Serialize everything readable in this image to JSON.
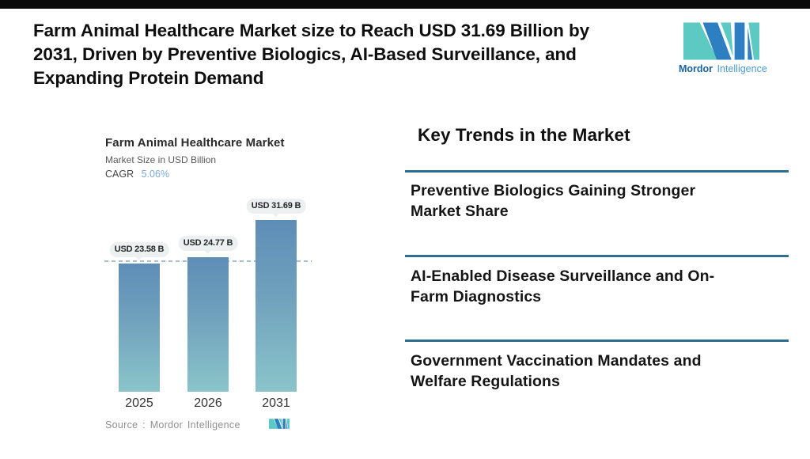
{
  "colors": {
    "teal": "#5CC9C2",
    "blue": "#2E7FC2",
    "divider": "#2E6E93",
    "bar_top": "#5E8DB6",
    "bar_bottom": "#8AC4CA",
    "dashed": "#A9BFD3",
    "cagr_value": "#7BA9DA",
    "pill_bg": "#EDF0F1"
  },
  "header": {
    "title_lines": [
      "Farm Animal Healthcare Market size to Reach USD 31.69 Billion by",
      "2031, Driven by Preventive Biologics, AI-Based Surveillance, and",
      "Expanding Protein Demand"
    ]
  },
  "logo": {
    "brand_bold": "Mordor",
    "brand_light": "Intelligence"
  },
  "chart_data": {
    "type": "bar",
    "title": "Farm Animal Healthcare Market",
    "subtitle": "Market Size in USD Billion",
    "cagr_label": "CAGR",
    "cagr_value": "5.06%",
    "categories": [
      "2025",
      "2026",
      "2031"
    ],
    "values": [
      23.58,
      24.77,
      31.69
    ],
    "value_labels": [
      "USD 23.58 B",
      "USD 24.77 B",
      "USD 31.69 B"
    ],
    "unit": "USD Billion",
    "ylim": [
      0,
      35
    ],
    "grid": "off",
    "legend": "none",
    "reference_line": {
      "style": "dashed",
      "at": 23.58
    },
    "source": "Source :  Mordor Intelligence"
  },
  "trends": {
    "heading": "Key Trends in the Market",
    "items": [
      {
        "text": "Preventive Biologics Gaining Stronger Market Share",
        "lines": [
          "Preventive Biologics Gaining Stronger",
          "Market Share"
        ]
      },
      {
        "text": "AI-Enabled Disease Surveillance and On-Farm Diagnostics",
        "lines": [
          "AI-Enabled Disease Surveillance and On-",
          "Farm Diagnostics"
        ]
      },
      {
        "text": "Government Vaccination Mandates and Welfare Regulations",
        "lines": [
          "Government Vaccination Mandates and",
          "Welfare Regulations"
        ]
      }
    ]
  }
}
